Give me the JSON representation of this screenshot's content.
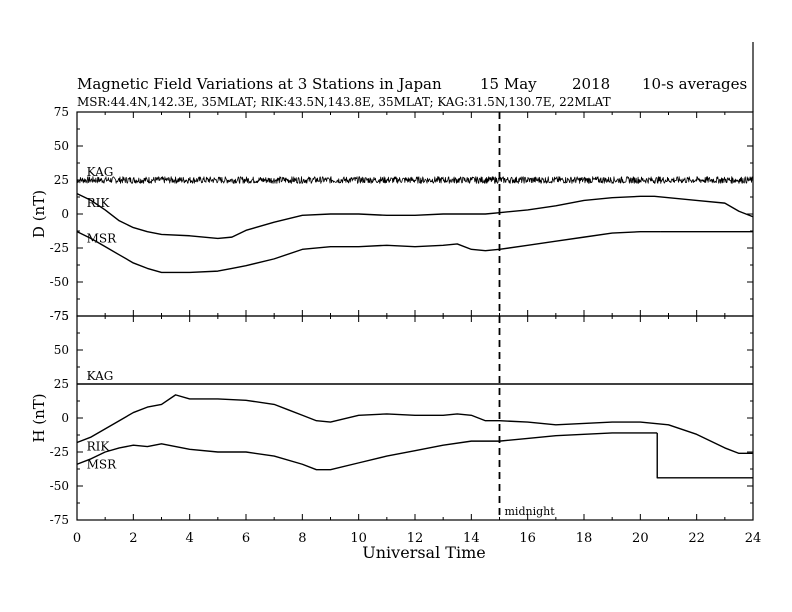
{
  "header": {
    "title": "Magnetic Field Variations at 3 Stations in Japan",
    "date": "15 May",
    "year": "2018",
    "averaging": "10-s averages",
    "stations_line": "MSR:44.4N,142.3E, 35MLAT;  RIK:43.5N,143.8E, 35MLAT;  KAG:31.5N,130.7E, 22MLAT"
  },
  "chart_data": [
    {
      "type": "line",
      "panel": "D",
      "ylabel": "D (nT)",
      "ylim": [
        -75,
        75
      ],
      "yticks": [
        "75",
        "50",
        "25",
        "0",
        "-25",
        "-50",
        "-75"
      ],
      "xlim": [
        0,
        24
      ],
      "series": [
        {
          "name": "KAG",
          "noisy": true,
          "x": [
            0,
            2,
            4,
            6,
            8,
            10,
            12,
            14,
            16,
            18,
            20,
            22,
            24
          ],
          "y": [
            25,
            25,
            25,
            25,
            25,
            25,
            25,
            25,
            25,
            25,
            25,
            25,
            25
          ]
        },
        {
          "name": "RIK",
          "noisy": false,
          "x": [
            0,
            0.5,
            1,
            1.5,
            2,
            2.5,
            3,
            4,
            5,
            5.5,
            6,
            7,
            8,
            9,
            10,
            11,
            12,
            13,
            14,
            14.5,
            15,
            16,
            17,
            18,
            19,
            20,
            20.5,
            21,
            22,
            23,
            23.5,
            24
          ],
          "y": [
            15,
            10,
            3,
            -5,
            -10,
            -13,
            -15,
            -16,
            -18,
            -17,
            -12,
            -6,
            -1,
            0,
            0,
            -1,
            -1,
            0,
            0,
            0,
            1,
            3,
            6,
            10,
            12,
            13,
            13,
            12,
            10,
            8,
            2,
            -2
          ]
        },
        {
          "name": "MSR",
          "noisy": false,
          "x": [
            0,
            0.5,
            1,
            1.5,
            2,
            2.5,
            3,
            4,
            5,
            5.5,
            6,
            7,
            8,
            9,
            10,
            11,
            12,
            13,
            13.5,
            14,
            14.5,
            15,
            16,
            17,
            18,
            19,
            20,
            20.7
          ],
          "y": [
            -13,
            -18,
            -24,
            -30,
            -36,
            -40,
            -43,
            -43,
            -42,
            -40,
            -38,
            -33,
            -26,
            -24,
            -24,
            -23,
            -24,
            -23,
            -22,
            -26,
            -27,
            -26,
            -23,
            -20,
            -17,
            -14,
            -13,
            -13
          ]
        },
        {
          "name": "",
          "noisy": false,
          "x": [
            20.7,
            24
          ],
          "y": [
            -13,
            -13
          ]
        }
      ],
      "labels": [
        {
          "text": "KAG",
          "x": 0.2,
          "y": 28
        },
        {
          "text": "RIK",
          "x": 0.2,
          "y": 5
        },
        {
          "text": "MSR",
          "x": 0.2,
          "y": -21
        }
      ]
    },
    {
      "type": "line",
      "panel": "H",
      "ylabel": "H (nT)",
      "ylim": [
        -75,
        75
      ],
      "yticks": [
        "75",
        "50",
        "25",
        "0",
        "-25",
        "-50",
        "-75"
      ],
      "xlim": [
        0,
        24
      ],
      "series": [
        {
          "name": "KAG",
          "noisy": false,
          "x": [
            0,
            24
          ],
          "y": [
            25,
            25
          ]
        },
        {
          "name": "RIK",
          "noisy": false,
          "x": [
            0,
            0.5,
            1,
            1.5,
            2,
            2.5,
            3,
            3.5,
            4,
            5,
            6,
            7,
            7.5,
            8,
            8.5,
            9,
            10,
            11,
            12,
            13,
            13.5,
            14,
            14.5,
            15,
            16,
            17,
            18,
            19,
            20,
            21,
            22,
            23,
            23.5,
            24
          ],
          "y": [
            -18,
            -14,
            -8,
            -2,
            4,
            8,
            10,
            17,
            14,
            14,
            13,
            10,
            6,
            2,
            -2,
            -3,
            2,
            3,
            2,
            2,
            3,
            2,
            -2,
            -2,
            -3,
            -5,
            -4,
            -3,
            -3,
            -5,
            -12,
            -22,
            -26,
            -26
          ]
        },
        {
          "name": "MSR",
          "noisy": false,
          "x": [
            0,
            0.5,
            1,
            1.5,
            2,
            2.5,
            3,
            3.5,
            4,
            5,
            6,
            7,
            8,
            8.5,
            9,
            10,
            11,
            12,
            13,
            14,
            15,
            16,
            17,
            18,
            19,
            20,
            20.6
          ],
          "y": [
            -34,
            -30,
            -25,
            -22,
            -20,
            -21,
            -19,
            -21,
            -23,
            -25,
            -25,
            -28,
            -34,
            -38,
            -38,
            -33,
            -28,
            -24,
            -20,
            -17,
            -17,
            -15,
            -13,
            -12,
            -11,
            -11,
            -11
          ]
        },
        {
          "name": "",
          "noisy": false,
          "x": [
            20.6,
            20.6,
            24
          ],
          "y": [
            -11,
            -44,
            -44
          ]
        }
      ],
      "labels": [
        {
          "text": "KAG",
          "x": 0.2,
          "y": 28
        },
        {
          "text": "RIK",
          "x": 0.2,
          "y": -24
        },
        {
          "text": "MSR",
          "x": 0.2,
          "y": -37
        }
      ]
    }
  ],
  "x_axis": {
    "label": "Universal Time",
    "ticks": [
      "0",
      "2",
      "4",
      "6",
      "8",
      "10",
      "12",
      "14",
      "16",
      "18",
      "20",
      "22",
      "24"
    ]
  },
  "midnight": {
    "x": 15,
    "label": "midnight"
  }
}
